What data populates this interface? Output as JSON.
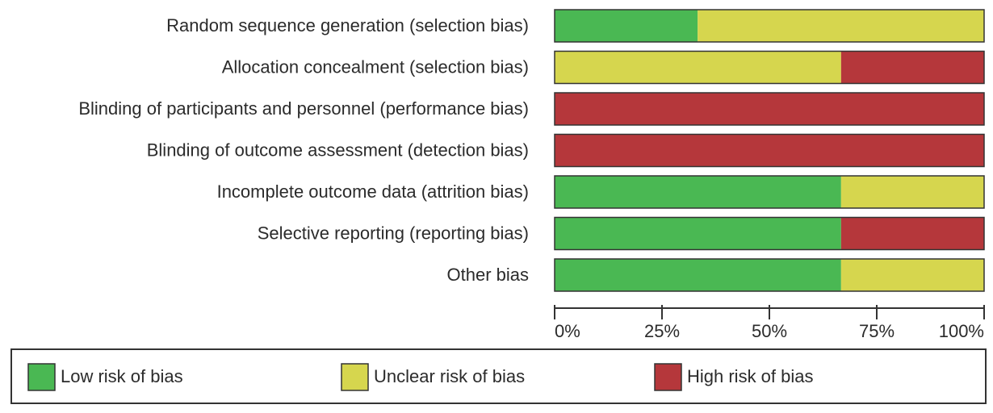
{
  "chart_data": {
    "type": "stacked-bar-horizontal",
    "categories": [
      "Random sequence generation (selection bias)",
      "Allocation concealment (selection bias)",
      "Blinding of participants and personnel (performance bias)",
      "Blinding of outcome assessment (detection bias)",
      "Incomplete outcome data (attrition bias)",
      "Selective reporting (reporting bias)",
      "Other bias"
    ],
    "series": [
      {
        "name": "Low risk of bias",
        "color": "#4ab853",
        "values": [
          33.3,
          0,
          0,
          0,
          66.7,
          66.7,
          66.7
        ]
      },
      {
        "name": "Unclear risk of bias",
        "color": "#d6d64e",
        "values": [
          66.7,
          66.7,
          0,
          0,
          33.3,
          0,
          33.3
        ]
      },
      {
        "name": "High risk of bias",
        "color": "#b5373b",
        "values": [
          0,
          33.3,
          100,
          100,
          0,
          33.3,
          0
        ]
      }
    ],
    "xlim": [
      0,
      100
    ],
    "xticks": [
      {
        "value": 0,
        "label": "0%"
      },
      {
        "value": 25,
        "label": "25%"
      },
      {
        "value": 50,
        "label": "50%"
      },
      {
        "value": 75,
        "label": "75%"
      },
      {
        "value": 100,
        "label": "100%"
      }
    ]
  }
}
